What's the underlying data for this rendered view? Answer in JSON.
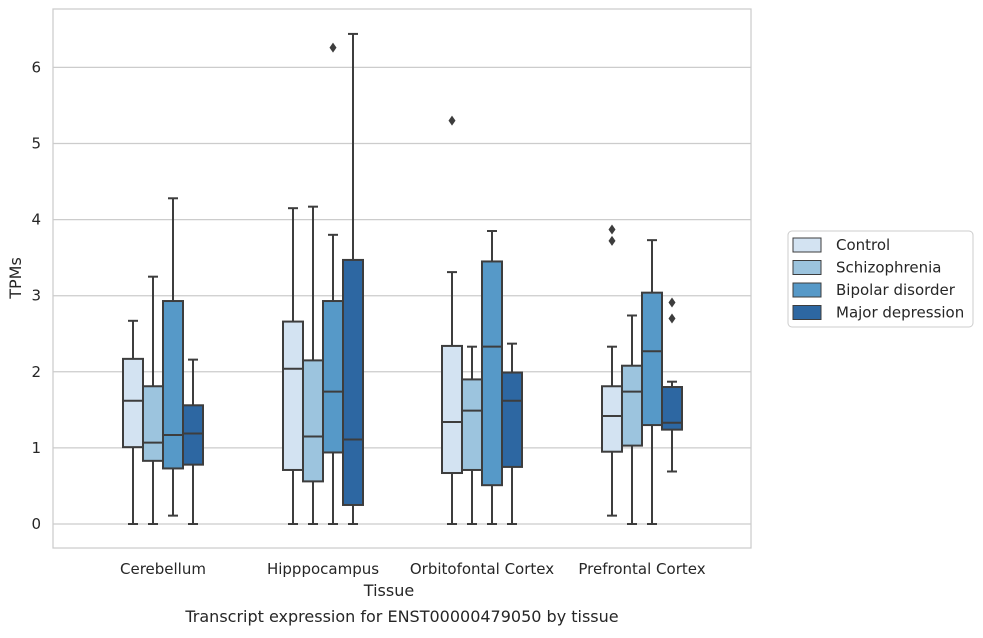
{
  "chart_data": {
    "type": "box",
    "caption": "Transcript expression for ENST00000479050 by tissue",
    "xlabel": "Tissue",
    "ylabel": "TPMs",
    "ylim": [
      -0.3,
      6.8
    ],
    "yticks": [
      0,
      1,
      2,
      3,
      4,
      5,
      6
    ],
    "grid": "horizontal",
    "legend_position": "right",
    "categories": [
      "Cerebellum",
      "Hipppocampus",
      "Orbitofontal Cortex",
      "Prefrontal Cortex"
    ],
    "series": [
      {
        "name": "Control",
        "color": "#d3e3f2",
        "boxes": [
          {
            "whisker_low": 0.0,
            "q1": 1.01,
            "median": 1.62,
            "q3": 2.17,
            "whisker_high": 2.67,
            "outliers": []
          },
          {
            "whisker_low": 0.0,
            "q1": 0.71,
            "median": 2.04,
            "q3": 2.66,
            "whisker_high": 4.15,
            "outliers": []
          },
          {
            "whisker_low": 0.0,
            "q1": 0.67,
            "median": 1.34,
            "q3": 2.34,
            "whisker_high": 3.31,
            "outliers": [
              5.3
            ]
          },
          {
            "whisker_low": 0.11,
            "q1": 0.95,
            "median": 1.42,
            "q3": 1.81,
            "whisker_high": 2.33,
            "outliers": [
              3.72,
              3.87
            ]
          }
        ]
      },
      {
        "name": "Schizophrenia",
        "color": "#9cc4de",
        "boxes": [
          {
            "whisker_low": 0.0,
            "q1": 0.83,
            "median": 1.07,
            "q3": 1.81,
            "whisker_high": 3.25,
            "outliers": []
          },
          {
            "whisker_low": 0.0,
            "q1": 0.56,
            "median": 1.15,
            "q3": 2.15,
            "whisker_high": 4.17,
            "outliers": []
          },
          {
            "whisker_low": 0.0,
            "q1": 0.71,
            "median": 1.49,
            "q3": 1.9,
            "whisker_high": 2.33,
            "outliers": []
          },
          {
            "whisker_low": 0.0,
            "q1": 1.03,
            "median": 1.74,
            "q3": 2.08,
            "whisker_high": 2.74,
            "outliers": []
          }
        ]
      },
      {
        "name": "Bipolar disorder",
        "color": "#5699c8",
        "boxes": [
          {
            "whisker_low": 0.11,
            "q1": 0.73,
            "median": 1.17,
            "q3": 2.93,
            "whisker_high": 4.28,
            "outliers": []
          },
          {
            "whisker_low": 0.0,
            "q1": 0.94,
            "median": 1.74,
            "q3": 2.93,
            "whisker_high": 3.8,
            "outliers": [
              6.26
            ]
          },
          {
            "whisker_low": 0.0,
            "q1": 0.51,
            "median": 2.33,
            "q3": 3.45,
            "whisker_high": 3.85,
            "outliers": []
          },
          {
            "whisker_low": 0.0,
            "q1": 1.3,
            "median": 2.27,
            "q3": 3.04,
            "whisker_high": 3.73,
            "outliers": []
          }
        ]
      },
      {
        "name": "Major depression",
        "color": "#2d67a2",
        "boxes": [
          {
            "whisker_low": 0.0,
            "q1": 0.78,
            "median": 1.19,
            "q3": 1.56,
            "whisker_high": 2.16,
            "outliers": []
          },
          {
            "whisker_low": 0.0,
            "q1": 0.25,
            "median": 1.11,
            "q3": 3.47,
            "whisker_high": 6.44,
            "outliers": []
          },
          {
            "whisker_low": 0.0,
            "q1": 0.75,
            "median": 1.62,
            "q3": 1.99,
            "whisker_high": 2.37,
            "outliers": []
          },
          {
            "whisker_low": 0.69,
            "q1": 1.24,
            "median": 1.33,
            "q3": 1.8,
            "whisker_high": 1.87,
            "outliers": [
              2.7,
              2.91
            ]
          }
        ]
      }
    ]
  }
}
